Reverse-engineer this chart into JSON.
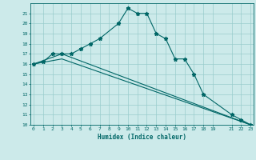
{
  "xlabel": "Humidex (Indice chaleur)",
  "line1_x": [
    0,
    1,
    2,
    3,
    4,
    5,
    6,
    7,
    9,
    10,
    11,
    12,
    13,
    14,
    15,
    16,
    17,
    18,
    21,
    22,
    23
  ],
  "line1_y": [
    16,
    16.2,
    17,
    17,
    17,
    17.5,
    18,
    18.5,
    20,
    21.5,
    21,
    21,
    19,
    18.5,
    16.5,
    16.5,
    15,
    13,
    11,
    10.5,
    10
  ],
  "line2_x": [
    0,
    3,
    23
  ],
  "line2_y": [
    16,
    17,
    10
  ],
  "line3_x": [
    0,
    3,
    23
  ],
  "line3_y": [
    16,
    16.5,
    10
  ],
  "line_color": "#006666",
  "bg_color": "#cceaea",
  "grid_color": "#99cccc",
  "ylim": [
    10,
    22
  ],
  "xlim": [
    0,
    23
  ],
  "yticks": [
    10,
    11,
    12,
    13,
    14,
    15,
    16,
    17,
    18,
    19,
    20,
    21
  ],
  "xticks": [
    0,
    1,
    2,
    3,
    4,
    5,
    6,
    7,
    8,
    9,
    10,
    11,
    12,
    13,
    14,
    15,
    16,
    17,
    18,
    19,
    21,
    22,
    23
  ],
  "xtick_labels": [
    "0",
    "1",
    "2",
    "3",
    "4",
    "5",
    "6",
    "7",
    "8",
    "9",
    "10",
    "11",
    "12",
    "13",
    "14",
    "15",
    "16",
    "17",
    "18",
    "19",
    "21",
    "22",
    "23"
  ]
}
